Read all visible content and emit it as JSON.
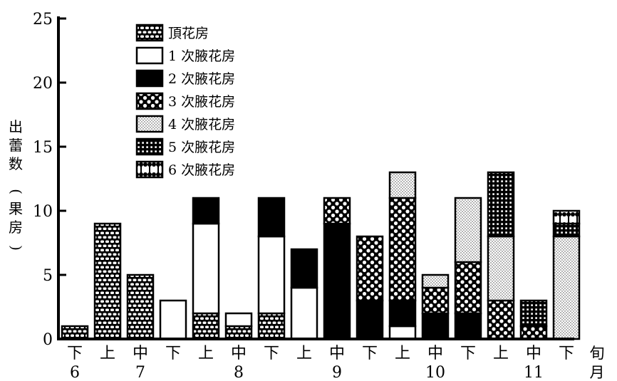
{
  "chart_data": {
    "type": "bar",
    "stacked": true,
    "ylim": [
      0,
      25
    ],
    "yticks": [
      0,
      5,
      10,
      15,
      20,
      25
    ],
    "ylabel_chars": [
      "出",
      "蕾",
      "数",
      "(",
      "果",
      "房",
      ")"
    ],
    "xaxis_label_chars": [
      "旬",
      "月"
    ],
    "categories": [
      "下",
      "上",
      "中",
      "下",
      "上",
      "中",
      "下",
      "上",
      "中",
      "下",
      "上",
      "中",
      "下",
      "上",
      "中",
      "下"
    ],
    "month_labels": [
      {
        "label": "6",
        "index": 0
      },
      {
        "label": "7",
        "index": 2
      },
      {
        "label": "8",
        "index": 5
      },
      {
        "label": "9",
        "index": 8
      },
      {
        "label": "10",
        "index": 11
      },
      {
        "label": "11",
        "index": 14
      }
    ],
    "series": [
      {
        "name": "頂花房",
        "pattern": "brick",
        "values": [
          1,
          9,
          5,
          0,
          2,
          1,
          2,
          0,
          0,
          0,
          0,
          0,
          0,
          0,
          0,
          0
        ]
      },
      {
        "name": "1 次腋花房",
        "pattern": "white",
        "values": [
          0,
          0,
          0,
          3,
          7,
          1,
          6,
          4,
          0,
          0,
          1,
          0,
          0,
          0,
          0,
          0
        ]
      },
      {
        "name": "2 次腋花房",
        "pattern": "black",
        "values": [
          0,
          0,
          0,
          0,
          2,
          0,
          3,
          3,
          9,
          3,
          2,
          2,
          2,
          0,
          0,
          0
        ]
      },
      {
        "name": "3 次腋花房",
        "pattern": "crosshatch",
        "values": [
          0,
          0,
          0,
          0,
          0,
          0,
          0,
          0,
          2,
          5,
          8,
          2,
          4,
          3,
          1,
          0
        ]
      },
      {
        "name": "4 次腋花房",
        "pattern": "dots",
        "values": [
          0,
          0,
          0,
          0,
          0,
          0,
          0,
          0,
          0,
          0,
          2,
          1,
          5,
          5,
          0,
          8
        ]
      },
      {
        "name": "5 次腋花房",
        "pattern": "grid",
        "values": [
          0,
          0,
          0,
          0,
          0,
          0,
          0,
          0,
          0,
          0,
          0,
          0,
          0,
          5,
          2,
          1
        ]
      },
      {
        "name": "6 次腋花房",
        "pattern": "scallop",
        "values": [
          0,
          0,
          0,
          0,
          0,
          0,
          0,
          0,
          0,
          0,
          0,
          0,
          0,
          0,
          0,
          1
        ]
      }
    ]
  }
}
